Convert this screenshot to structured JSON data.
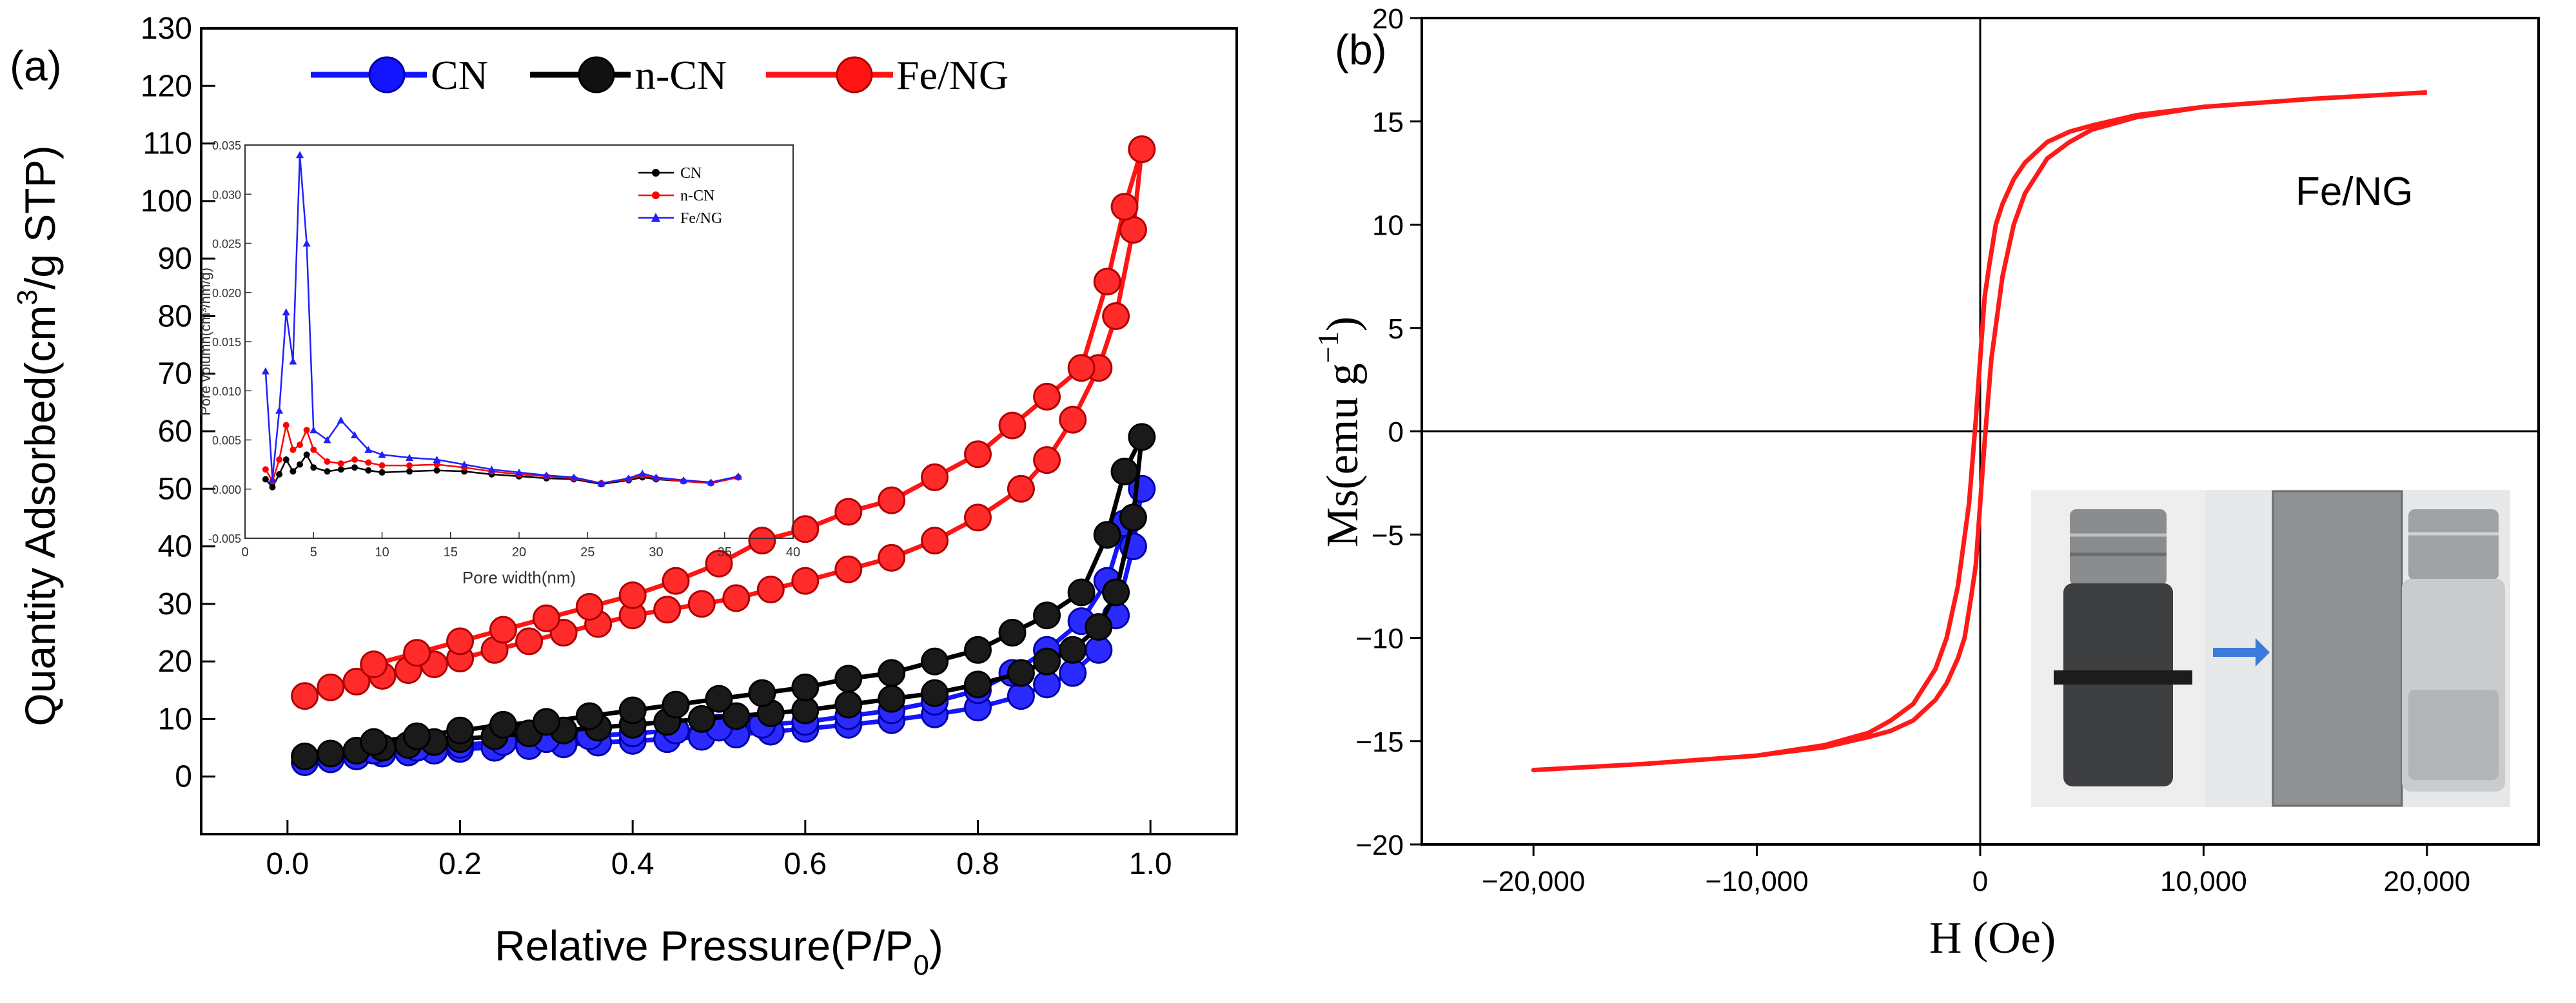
{
  "chart_data": [
    {
      "panel_label": "(a)",
      "type": "line",
      "xlabel": "Relative Pressure(P/P",
      "xlabel_sub": "0",
      "xlabel_close": ")",
      "ylabel": "Quantity Adsorbed(cm",
      "ylabel_sup": "3",
      "ylabel_rest": "/g STP)",
      "xlim": [
        -0.1,
        1.1
      ],
      "ylim": [
        -10,
        130
      ],
      "x_ticks": [
        0.0,
        0.2,
        0.4,
        0.6,
        0.8,
        1.0
      ],
      "x_tick_labels": [
        "0.0",
        "0.2",
        "0.4",
        "0.6",
        "0.8",
        "1.0"
      ],
      "y_ticks": [
        0,
        10,
        20,
        30,
        40,
        50,
        60,
        70,
        80,
        90,
        100,
        110,
        120,
        130
      ],
      "y_tick_labels": [
        "0",
        "10",
        "20",
        "30",
        "40",
        "50",
        "60",
        "70",
        "80",
        "90",
        "100",
        "110",
        "120",
        "130"
      ],
      "legend_position": "top",
      "series": [
        {
          "name": "CN",
          "color": "#1414ff",
          "x": [
            0.02,
            0.05,
            0.08,
            0.11,
            0.14,
            0.17,
            0.2,
            0.24,
            0.28,
            0.32,
            0.36,
            0.4,
            0.44,
            0.48,
            0.52,
            0.56,
            0.6,
            0.65,
            0.7,
            0.75,
            0.8,
            0.85,
            0.88,
            0.91,
            0.94,
            0.96,
            0.98,
            0.99,
            0.97,
            0.95,
            0.92,
            0.88,
            0.84,
            0.8,
            0.75,
            0.7,
            0.65,
            0.6,
            0.55,
            0.5,
            0.45,
            0.4,
            0.35,
            0.3,
            0.25,
            0.2,
            0.15,
            0.1
          ],
          "y": [
            2.5,
            3,
            3.5,
            4,
            4.2,
            4.5,
            4.8,
            5,
            5.3,
            5.6,
            5.9,
            6.2,
            6.5,
            6.9,
            7.3,
            7.8,
            8.3,
            9,
            9.8,
            10.8,
            12,
            14,
            16,
            18,
            22,
            28,
            40,
            50,
            44,
            34,
            27,
            22,
            18,
            15,
            13,
            11.5,
            10.5,
            9.5,
            9,
            8.5,
            8,
            7.5,
            7,
            6.5,
            6,
            5.5,
            5,
            4.5
          ]
        },
        {
          "name": "n-CN",
          "color": "#000000",
          "x": [
            0.02,
            0.05,
            0.08,
            0.11,
            0.14,
            0.17,
            0.2,
            0.24,
            0.28,
            0.32,
            0.36,
            0.4,
            0.44,
            0.48,
            0.52,
            0.56,
            0.6,
            0.65,
            0.7,
            0.75,
            0.8,
            0.85,
            0.88,
            0.91,
            0.94,
            0.96,
            0.98,
            0.99,
            0.97,
            0.95,
            0.92,
            0.88,
            0.84,
            0.8,
            0.75,
            0.7,
            0.65,
            0.6,
            0.55,
            0.5,
            0.45,
            0.4,
            0.35,
            0.3,
            0.25,
            0.2,
            0.15,
            0.1
          ],
          "y": [
            3.5,
            4,
            4.5,
            5,
            5.5,
            6,
            6.5,
            7,
            7.5,
            8,
            8.5,
            9,
            9.5,
            10,
            10.5,
            11,
            11.5,
            12.5,
            13.5,
            14.5,
            16,
            18,
            20,
            22,
            26,
            32,
            45,
            59,
            53,
            42,
            32,
            28,
            25,
            22,
            20,
            18,
            17,
            15.5,
            14.5,
            13.5,
            12.5,
            11.5,
            10.5,
            9.5,
            9,
            8,
            7,
            6
          ]
        },
        {
          "name": "Fe/NG",
          "color": "#ff1414",
          "x": [
            0.02,
            0.05,
            0.08,
            0.11,
            0.14,
            0.17,
            0.2,
            0.24,
            0.28,
            0.32,
            0.36,
            0.4,
            0.44,
            0.48,
            0.52,
            0.56,
            0.6,
            0.65,
            0.7,
            0.75,
            0.8,
            0.85,
            0.88,
            0.91,
            0.94,
            0.96,
            0.98,
            0.99,
            0.97,
            0.95,
            0.92,
            0.88,
            0.84,
            0.8,
            0.75,
            0.7,
            0.65,
            0.6,
            0.55,
            0.5,
            0.45,
            0.4,
            0.35,
            0.3,
            0.25,
            0.2,
            0.15,
            0.1
          ],
          "y": [
            14,
            15.5,
            16.5,
            17.5,
            18.5,
            19.5,
            20.5,
            22,
            23.5,
            25,
            26.5,
            28,
            29,
            30,
            31,
            32.5,
            34,
            36,
            38,
            41,
            45,
            50,
            55,
            62,
            71,
            80,
            95,
            109,
            99,
            86,
            71,
            66,
            61,
            56,
            52,
            48,
            46,
            43,
            41,
            37,
            34,
            31.5,
            29.5,
            27.5,
            25.5,
            23.5,
            21.5,
            19.5
          ]
        }
      ],
      "inset": {
        "type": "line",
        "xlabel": "Pore width(nm)",
        "ylabel": "Pore volumn(cm³/nm/g)",
        "xlim": [
          0,
          40
        ],
        "ylim": [
          -0.005,
          0.035
        ],
        "x_ticks": [
          0,
          5,
          10,
          15,
          20,
          25,
          30,
          35,
          40
        ],
        "x_tick_labels": [
          "0",
          "5",
          "10",
          "15",
          "20",
          "25",
          "30",
          "35",
          "40"
        ],
        "y_ticks": [
          -0.005,
          0.0,
          0.005,
          0.01,
          0.015,
          0.02,
          0.025,
          0.03,
          0.035
        ],
        "y_tick_labels": [
          "-0.005",
          "0.000",
          "0.005",
          "0.010",
          "0.015",
          "0.020",
          "0.025",
          "0.030",
          "0.035"
        ],
        "legend_position": "top-right",
        "series": [
          {
            "name": "CN",
            "color": "#000000",
            "marker": "circle",
            "x": [
              1.5,
              2,
              2.5,
              3,
              3.5,
              4,
              4.5,
              5,
              6,
              7,
              8,
              9,
              10,
              12,
              14,
              16,
              18,
              20,
              22,
              24,
              26,
              28,
              29,
              30,
              32,
              34,
              36
            ],
            "y": [
              0.001,
              0.0002,
              0.0015,
              0.003,
              0.0018,
              0.0025,
              0.0035,
              0.0022,
              0.0018,
              0.002,
              0.0022,
              0.0019,
              0.0017,
              0.0018,
              0.0019,
              0.0018,
              0.0015,
              0.0013,
              0.0011,
              0.001,
              0.0005,
              0.0009,
              0.0012,
              0.001,
              0.0008,
              0.0006,
              0.0012
            ]
          },
          {
            "name": "n-CN",
            "color": "#ff0000",
            "marker": "circle",
            "x": [
              1.5,
              2,
              2.5,
              3,
              3.5,
              4,
              4.5,
              5,
              6,
              7,
              8,
              9,
              10,
              12,
              14,
              16,
              18,
              20,
              22,
              24,
              26,
              28,
              29,
              30,
              32,
              34,
              36
            ],
            "y": [
              0.002,
              0.0008,
              0.003,
              0.0065,
              0.004,
              0.0045,
              0.006,
              0.004,
              0.0028,
              0.0026,
              0.003,
              0.0027,
              0.0024,
              0.0024,
              0.0025,
              0.0022,
              0.0018,
              0.0015,
              0.0013,
              0.0011,
              0.0006,
              0.001,
              0.0014,
              0.0011,
              0.0008,
              0.0006,
              0.0012
            ]
          },
          {
            "name": "Fe/NG",
            "color": "#2020ff",
            "marker": "triangle",
            "x": [
              1.5,
              2,
              2.5,
              3,
              3.5,
              4,
              4.5,
              5,
              6,
              7,
              8,
              9,
              10,
              12,
              14,
              16,
              18,
              20,
              22,
              24,
              26,
              28,
              29,
              30,
              32,
              34,
              36
            ],
            "y": [
              0.012,
              0.001,
              0.008,
              0.018,
              0.013,
              0.034,
              0.025,
              0.006,
              0.005,
              0.007,
              0.0055,
              0.004,
              0.0035,
              0.0032,
              0.003,
              0.0025,
              0.002,
              0.0017,
              0.0014,
              0.0012,
              0.0006,
              0.0011,
              0.0016,
              0.0012,
              0.0009,
              0.0007,
              0.0013
            ]
          }
        ]
      }
    },
    {
      "panel_label": "(b)",
      "type": "line",
      "xlabel": "H (Oe)",
      "ylabel": "Ms(emu g",
      "ylabel_sup": "−1",
      "ylabel_close": ")",
      "annotation": "Fe/NG",
      "xlim": [
        -25000,
        25000
      ],
      "ylim": [
        -20,
        20
      ],
      "x_ticks": [
        -20000,
        -10000,
        0,
        10000,
        20000
      ],
      "x_tick_labels": [
        "−20,000",
        "−10,000",
        "0",
        "10,000",
        "20,000"
      ],
      "y_ticks": [
        -20,
        -15,
        -10,
        -5,
        0,
        5,
        10,
        15,
        20
      ],
      "y_tick_labels": [
        "−20",
        "−15",
        "−10",
        "−5",
        "0",
        "5",
        "10",
        "15",
        "20"
      ],
      "grid": false,
      "series": [
        {
          "name": "Fe/NG",
          "color": "#ff1a1a",
          "x": [
            20000,
            15000,
            10000,
            7000,
            5000,
            4000,
            3000,
            2000,
            1500,
            1000,
            700,
            400,
            200,
            0,
            -200,
            -500,
            -1000,
            -1500,
            -2000,
            -3000,
            -4000,
            -5000,
            -7000,
            -10000,
            -15000,
            -20000,
            -15000,
            -10000,
            -7000,
            -5000,
            -4000,
            -3000,
            -2000,
            -1500,
            -1000,
            -700,
            -400,
            -200,
            0,
            200,
            500,
            1000,
            1500,
            2000,
            3000,
            4000,
            5000,
            7000,
            10000,
            15000,
            20000
          ],
          "y": [
            16.4,
            16.1,
            15.7,
            15.3,
            14.8,
            14.5,
            14,
            13,
            12.2,
            11,
            10,
            8,
            6.5,
            3.5,
            0.5,
            -3.5,
            -7.5,
            -10,
            -11.5,
            -13.2,
            -14,
            -14.6,
            -15.2,
            -15.7,
            -16.1,
            -16.4,
            -16.1,
            -15.7,
            -15.3,
            -14.8,
            -14.5,
            -14,
            -13,
            -12.2,
            -11,
            -10,
            -8,
            -6.5,
            -3.5,
            -0.5,
            3.5,
            7.5,
            10,
            11.5,
            13.2,
            14,
            14.6,
            15.2,
            15.7,
            16.1,
            16.4
          ]
        }
      ]
    }
  ]
}
